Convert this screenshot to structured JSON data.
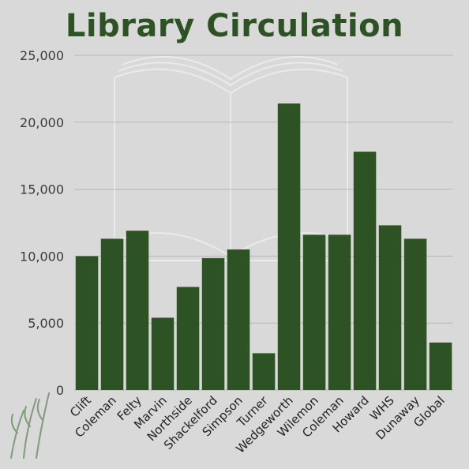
{
  "chart_data": {
    "type": "bar",
    "title": "Library Circulation",
    "categories": [
      "Clift",
      "Coleman",
      "Felty",
      "Marvin",
      "Northside",
      "Shackelford",
      "Simpson",
      "Turner",
      "Wedgeworth",
      "Wilemon",
      "Coleman",
      "Howard",
      "WHS",
      "Dunaway",
      "Global"
    ],
    "values": [
      10000,
      11300,
      11900,
      5400,
      7700,
      9850,
      10500,
      2750,
      21400,
      11600,
      11600,
      17800,
      12300,
      11300,
      3550
    ],
    "yticks": [
      "0",
      "5,000",
      "10,000",
      "15,000",
      "20,000",
      "25,000"
    ],
    "ylim": [
      0,
      25000
    ],
    "xlabel": "",
    "ylabel": "",
    "grid": true,
    "colors": {
      "bar": "#2d5325",
      "title": "#2d5325",
      "grid": "#b8b8b8",
      "background": "#d9d9d9"
    }
  }
}
